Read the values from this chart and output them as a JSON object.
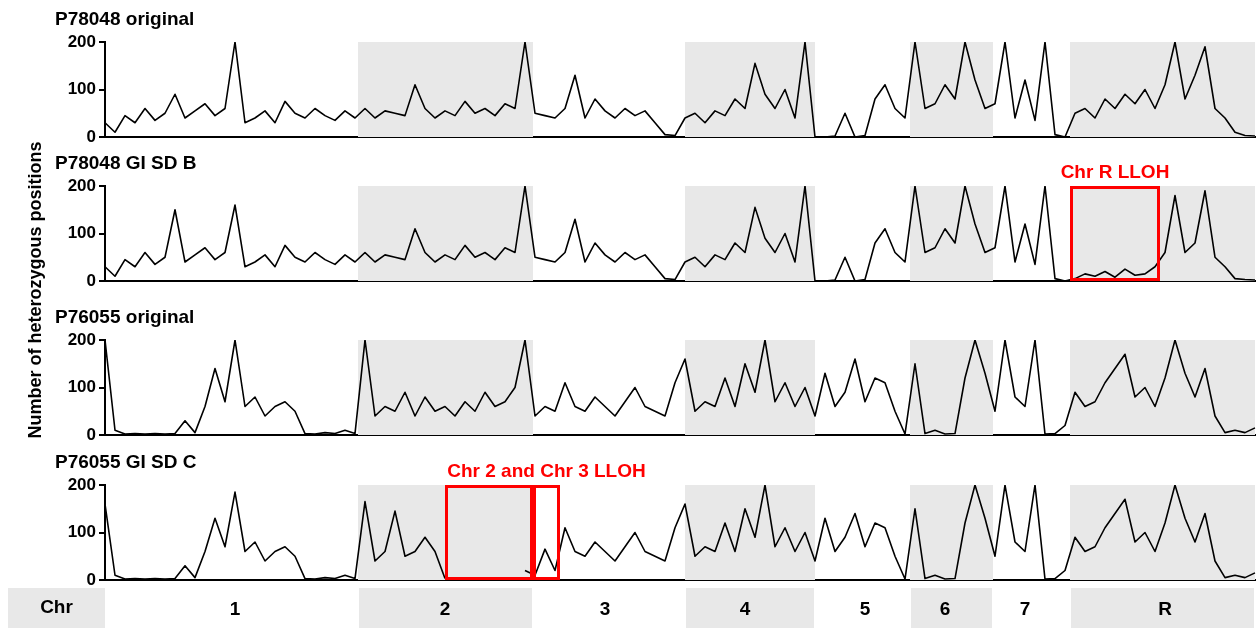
{
  "chart_data": [
    {
      "type": "line",
      "title": "P78048 original",
      "ylabel": "Number of heterozygous positions",
      "categories": [
        null,
        null,
        null,
        null,
        null,
        null,
        null,
        null,
        null,
        null,
        null,
        null,
        null,
        null,
        null,
        null,
        null,
        null,
        null,
        null,
        null,
        null,
        null,
        null,
        null,
        null,
        null,
        null,
        null,
        null,
        null,
        null,
        null,
        null,
        null,
        null,
        null,
        null,
        null,
        null,
        null,
        null,
        null,
        null,
        null,
        null,
        null,
        null,
        null,
        null,
        null,
        null,
        null,
        null,
        null,
        null,
        null,
        null,
        null,
        null,
        null,
        null,
        null,
        null,
        null,
        null,
        null,
        null,
        null,
        null,
        null,
        null,
        null,
        null,
        null,
        null,
        null,
        null,
        null,
        null,
        null,
        null,
        null,
        null,
        null,
        null,
        null,
        null,
        null,
        null,
        null,
        null,
        null,
        null,
        null,
        null,
        null,
        null,
        null,
        null,
        null,
        null,
        null,
        null,
        null,
        null,
        null,
        null,
        null,
        null,
        null,
        null,
        null,
        null,
        null,
        null
      ],
      "series": [
        {
          "color": "#000000",
          "values": [
            30,
            10,
            45,
            30,
            60,
            35,
            50,
            90,
            40,
            55,
            70,
            45,
            60,
            200,
            30,
            40,
            55,
            30,
            75,
            50,
            40,
            60,
            45,
            35,
            55,
            40,
            60,
            40,
            55,
            50,
            45,
            110,
            60,
            40,
            55,
            45,
            75,
            50,
            60,
            45,
            70,
            60,
            200,
            50,
            45,
            40,
            60,
            130,
            40,
            80,
            55,
            40,
            60,
            45,
            55,
            30,
            5,
            3,
            40,
            50,
            30,
            55,
            45,
            80,
            60,
            155,
            90,
            60,
            100,
            40,
            200,
            0,
            0,
            2,
            50,
            0,
            3,
            80,
            110,
            60,
            40,
            200,
            60,
            70,
            110,
            80,
            200,
            120,
            60,
            70,
            200,
            40,
            120,
            35,
            200,
            5,
            0,
            50,
            60,
            40,
            80,
            60,
            90,
            70,
            100,
            60,
            110,
            200,
            80,
            130,
            190,
            60,
            40,
            10,
            3,
            2
          ]
        }
      ],
      "ylim": [
        0,
        200
      ],
      "yticks": [
        0,
        100,
        200
      ],
      "tick_labels": "y",
      "grid": false,
      "legend": false
    },
    {
      "type": "line",
      "title": "P78048 GI SD B",
      "annotations": [
        "Chr R LLOH"
      ],
      "categories": [
        null,
        null,
        null,
        null,
        null,
        null,
        null,
        null,
        null,
        null,
        null,
        null,
        null,
        null,
        null,
        null,
        null,
        null,
        null,
        null,
        null,
        null,
        null,
        null,
        null,
        null,
        null,
        null,
        null,
        null,
        null,
        null,
        null,
        null,
        null,
        null,
        null,
        null,
        null,
        null,
        null,
        null,
        null,
        null,
        null,
        null,
        null,
        null,
        null,
        null,
        null,
        null,
        null,
        null,
        null,
        null,
        null,
        null,
        null,
        null,
        null,
        null,
        null,
        null,
        null,
        null,
        null,
        null,
        null,
        null,
        null,
        null,
        null,
        null,
        null,
        null,
        null,
        null,
        null,
        null,
        null,
        null,
        null,
        null,
        null,
        null,
        null,
        null,
        null,
        null,
        null,
        null,
        null,
        null,
        null,
        null,
        null,
        null,
        null,
        null,
        null,
        null,
        null,
        null,
        null,
        null,
        null,
        null,
        null,
        null,
        null,
        null,
        null,
        null,
        null,
        null
      ],
      "series": [
        {
          "color": "#000000",
          "values": [
            30,
            10,
            45,
            30,
            60,
            35,
            50,
            150,
            40,
            55,
            70,
            45,
            60,
            160,
            30,
            40,
            55,
            30,
            75,
            50,
            40,
            60,
            45,
            35,
            55,
            40,
            60,
            40,
            55,
            50,
            45,
            110,
            60,
            40,
            55,
            45,
            75,
            50,
            60,
            45,
            70,
            60,
            200,
            50,
            45,
            40,
            60,
            130,
            40,
            80,
            55,
            40,
            60,
            45,
            55,
            30,
            5,
            3,
            40,
            50,
            30,
            55,
            45,
            80,
            60,
            155,
            90,
            60,
            100,
            40,
            200,
            0,
            0,
            2,
            50,
            0,
            3,
            80,
            110,
            60,
            40,
            200,
            60,
            70,
            110,
            80,
            200,
            120,
            60,
            70,
            200,
            40,
            120,
            35,
            200,
            5,
            0,
            5,
            15,
            10,
            20,
            8,
            25,
            12,
            15,
            30,
            60,
            180,
            60,
            80,
            190,
            50,
            30,
            5,
            3,
            2
          ]
        }
      ],
      "ylim": [
        0,
        200
      ],
      "yticks": [
        0,
        100,
        200
      ],
      "tick_labels": "y",
      "grid": false,
      "legend": false
    },
    {
      "type": "line",
      "title": "P76055 original",
      "categories": [
        null,
        null,
        null,
        null,
        null,
        null,
        null,
        null,
        null,
        null,
        null,
        null,
        null,
        null,
        null,
        null,
        null,
        null,
        null,
        null,
        null,
        null,
        null,
        null,
        null,
        null,
        null,
        null,
        null,
        null,
        null,
        null,
        null,
        null,
        null,
        null,
        null,
        null,
        null,
        null,
        null,
        null,
        null,
        null,
        null,
        null,
        null,
        null,
        null,
        null,
        null,
        null,
        null,
        null,
        null,
        null,
        null,
        null,
        null,
        null,
        null,
        null,
        null,
        null,
        null,
        null,
        null,
        null,
        null,
        null,
        null,
        null,
        null,
        null,
        null,
        null,
        null,
        null,
        null,
        null,
        null,
        null,
        null,
        null,
        null,
        null,
        null,
        null,
        null,
        null,
        null,
        null,
        null,
        null,
        null,
        null,
        null,
        null,
        null,
        null,
        null,
        null,
        null,
        null,
        null,
        null,
        null,
        null,
        null,
        null,
        null,
        null,
        null,
        null,
        null,
        null
      ],
      "series": [
        {
          "color": "#000000",
          "values": [
            200,
            10,
            2,
            3,
            2,
            3,
            2,
            3,
            30,
            5,
            60,
            140,
            70,
            200,
            60,
            80,
            40,
            60,
            70,
            50,
            3,
            2,
            5,
            3,
            10,
            3,
            200,
            40,
            60,
            50,
            90,
            40,
            80,
            50,
            60,
            40,
            70,
            50,
            90,
            60,
            70,
            100,
            200,
            40,
            60,
            50,
            110,
            60,
            50,
            80,
            60,
            40,
            70,
            100,
            60,
            50,
            40,
            110,
            160,
            50,
            70,
            60,
            120,
            60,
            150,
            90,
            200,
            70,
            110,
            60,
            100,
            40,
            130,
            60,
            90,
            160,
            70,
            120,
            110,
            50,
            2,
            150,
            3,
            10,
            2,
            3,
            120,
            200,
            130,
            50,
            200,
            80,
            60,
            200,
            2,
            3,
            20,
            90,
            60,
            70,
            110,
            140,
            170,
            80,
            100,
            60,
            120,
            200,
            130,
            80,
            140,
            40,
            5,
            10,
            5,
            15
          ]
        }
      ],
      "ylim": [
        0,
        200
      ],
      "yticks": [
        0,
        100,
        200
      ],
      "tick_labels": "y",
      "grid": false,
      "legend": false
    },
    {
      "type": "line",
      "title": "P76055 GI SD C",
      "xlabel": "Chr",
      "annotations": [
        "Chr 2 and Chr 3 LLOH"
      ],
      "categories": [
        null,
        null,
        null,
        null,
        null,
        null,
        null,
        null,
        null,
        null,
        null,
        null,
        null,
        "1",
        null,
        null,
        null,
        null,
        null,
        null,
        null,
        null,
        null,
        null,
        null,
        null,
        null,
        null,
        null,
        null,
        null,
        null,
        null,
        null,
        "2",
        null,
        null,
        null,
        null,
        null,
        null,
        null,
        null,
        null,
        null,
        null,
        null,
        null,
        null,
        null,
        "3",
        null,
        null,
        null,
        null,
        null,
        null,
        null,
        null,
        null,
        null,
        null,
        null,
        null,
        "4",
        null,
        null,
        null,
        null,
        null,
        null,
        null,
        null,
        null,
        null,
        null,
        "5",
        null,
        null,
        null,
        null,
        null,
        null,
        null,
        "6",
        null,
        null,
        null,
        null,
        null,
        null,
        null,
        "7",
        null,
        null,
        null,
        null,
        null,
        null,
        null,
        null,
        null,
        null,
        null,
        null,
        null,
        "R",
        null,
        null,
        null,
        null,
        null,
        null,
        null,
        null,
        null
      ],
      "series": [
        {
          "color": "#000000",
          "values": [
            160,
            10,
            2,
            3,
            2,
            3,
            2,
            3,
            30,
            5,
            60,
            130,
            70,
            185,
            60,
            80,
            40,
            60,
            70,
            50,
            3,
            2,
            5,
            3,
            10,
            3,
            165,
            40,
            60,
            145,
            50,
            60,
            90,
            60,
            3,
            null,
            null,
            null,
            null,
            null,
            null,
            null,
            20,
            10,
            65,
            20,
            110,
            60,
            50,
            80,
            60,
            40,
            70,
            100,
            60,
            50,
            40,
            110,
            160,
            50,
            70,
            60,
            120,
            60,
            150,
            90,
            200,
            70,
            110,
            60,
            100,
            40,
            130,
            60,
            90,
            140,
            70,
            120,
            110,
            50,
            2,
            150,
            3,
            10,
            2,
            3,
            120,
            200,
            130,
            50,
            200,
            80,
            60,
            200,
            2,
            3,
            20,
            90,
            60,
            70,
            110,
            140,
            170,
            80,
            100,
            60,
            120,
            200,
            130,
            80,
            140,
            40,
            5,
            10,
            5,
            15
          ]
        }
      ],
      "ylim": [
        0,
        200
      ],
      "yticks": [
        0,
        100,
        200
      ],
      "grid": false,
      "legend": false
    }
  ]
}
